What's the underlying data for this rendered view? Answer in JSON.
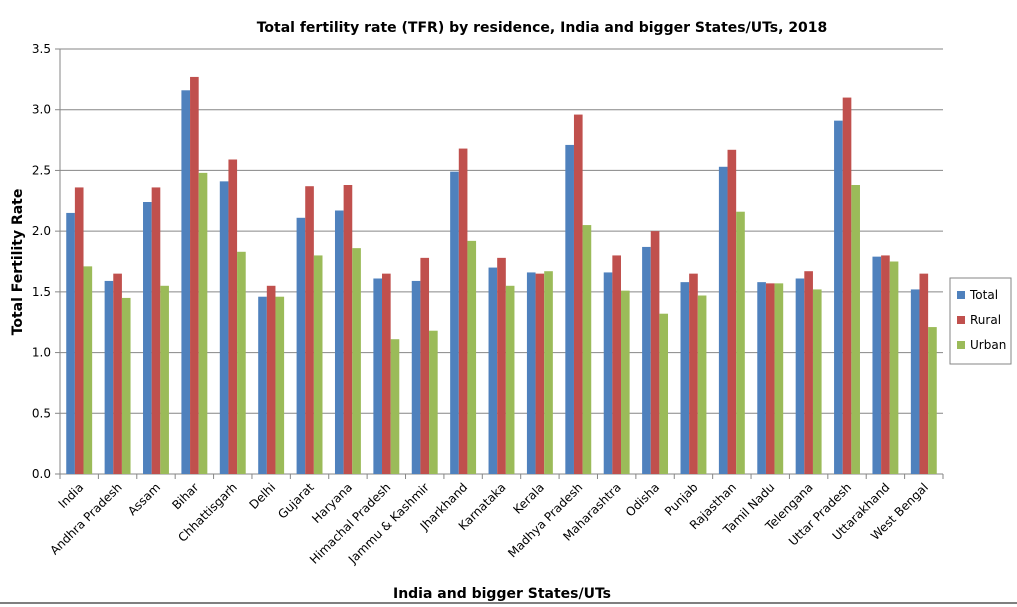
{
  "chart_data": {
    "type": "bar",
    "title": "Total fertility rate (TFR) by residence, India and bigger States/UTs, 2018",
    "xlabel": "India and bigger States/UTs",
    "ylabel": "Total Fertility Rate",
    "ylim": [
      0,
      3.5
    ],
    "yticks": [
      0.0,
      0.5,
      1.0,
      1.5,
      2.0,
      2.5,
      3.0,
      3.5
    ],
    "ytick_format": "0.0",
    "grid": true,
    "legend_position": "right",
    "categories": [
      "India",
      "Andhra Pradesh",
      "Assam",
      "Bihar",
      "Chhattisgarh",
      "Delhi",
      "Gujarat",
      "Haryana",
      "Himachal Pradesh",
      "Jammu & Kashmir",
      "Jharkhand",
      "Karnataka",
      "Kerala",
      "Madhya Pradesh",
      "Maharashtra",
      "Odisha",
      "Punjab",
      "Rajasthan",
      "Tamil Nadu",
      "Telengana",
      "Uttar Pradesh",
      "Uttarakhand",
      "West Bengal"
    ],
    "series": [
      {
        "name": "Total",
        "color": "#4F81BD",
        "values": [
          2.15,
          1.59,
          2.24,
          3.16,
          2.41,
          1.46,
          2.11,
          2.17,
          1.61,
          1.59,
          2.49,
          1.7,
          1.66,
          2.71,
          1.66,
          1.87,
          1.58,
          2.53,
          1.58,
          1.61,
          2.91,
          1.79,
          1.52
        ]
      },
      {
        "name": "Rural",
        "color": "#C0504D",
        "values": [
          2.36,
          1.65,
          2.36,
          3.27,
          2.59,
          1.55,
          2.37,
          2.38,
          1.65,
          1.78,
          2.68,
          1.78,
          1.65,
          2.96,
          1.8,
          2.0,
          1.65,
          2.67,
          1.57,
          1.67,
          3.1,
          1.8,
          1.65
        ]
      },
      {
        "name": "Urban",
        "color": "#9BBB59",
        "values": [
          1.71,
          1.45,
          1.55,
          2.48,
          1.83,
          1.46,
          1.8,
          1.86,
          1.11,
          1.18,
          1.92,
          1.55,
          1.67,
          2.05,
          1.51,
          1.32,
          1.47,
          2.16,
          1.57,
          1.52,
          2.38,
          1.75,
          1.21
        ]
      }
    ]
  }
}
